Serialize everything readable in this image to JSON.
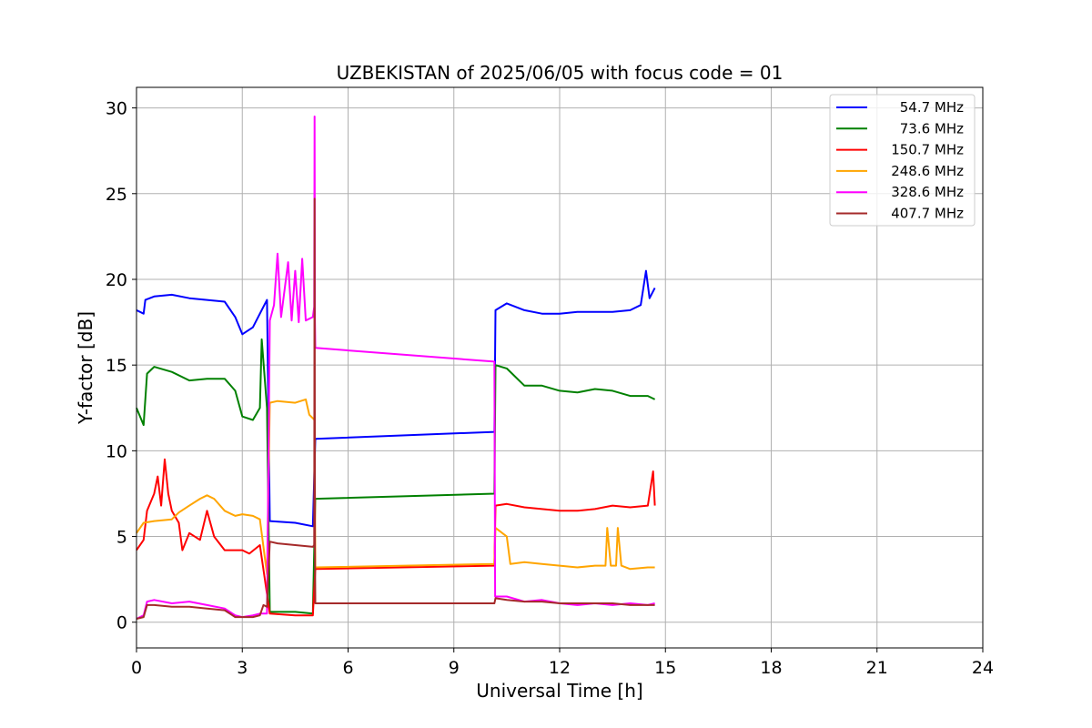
{
  "chart_data": {
    "type": "line",
    "title": "UZBEKISTAN of 2025/06/05 with focus code = 01",
    "xlabel": "Universal Time [h]",
    "ylabel": "Y-factor [dB]",
    "xlim": [
      0,
      24
    ],
    "ylim": [
      -1.5,
      31.2
    ],
    "xticks": [
      0,
      3,
      6,
      9,
      12,
      15,
      18,
      21,
      24
    ],
    "yticks": [
      0,
      5,
      10,
      15,
      20,
      25,
      30
    ],
    "grid": true,
    "legend_position": "top-right",
    "series": [
      {
        "name": " 54.7 MHz",
        "color": "#0000ff",
        "points": [
          [
            0.0,
            18.2
          ],
          [
            0.2,
            18.0
          ],
          [
            0.25,
            18.8
          ],
          [
            0.5,
            19.0
          ],
          [
            1.0,
            19.1
          ],
          [
            1.5,
            18.9
          ],
          [
            2.0,
            18.8
          ],
          [
            2.5,
            18.7
          ],
          [
            2.8,
            17.8
          ],
          [
            3.0,
            16.8
          ],
          [
            3.3,
            17.2
          ],
          [
            3.5,
            18.0
          ],
          [
            3.6,
            18.4
          ],
          [
            3.7,
            18.8
          ],
          [
            3.78,
            5.9
          ],
          [
            4.5,
            5.8
          ],
          [
            5.0,
            5.6
          ],
          [
            5.07,
            10.7
          ],
          [
            10.15,
            11.1
          ],
          [
            10.18,
            18.2
          ],
          [
            10.5,
            18.6
          ],
          [
            11.0,
            18.2
          ],
          [
            11.5,
            18.0
          ],
          [
            12.0,
            18.0
          ],
          [
            12.5,
            18.1
          ],
          [
            13.0,
            18.1
          ],
          [
            13.5,
            18.1
          ],
          [
            14.0,
            18.2
          ],
          [
            14.3,
            18.5
          ],
          [
            14.45,
            20.5
          ],
          [
            14.55,
            18.9
          ],
          [
            14.7,
            19.5
          ]
        ]
      },
      {
        "name": " 73.6 MHz",
        "color": "#008000",
        "points": [
          [
            0.0,
            12.5
          ],
          [
            0.2,
            11.5
          ],
          [
            0.3,
            14.5
          ],
          [
            0.5,
            14.9
          ],
          [
            1.0,
            14.6
          ],
          [
            1.5,
            14.1
          ],
          [
            2.0,
            14.2
          ],
          [
            2.5,
            14.2
          ],
          [
            2.8,
            13.5
          ],
          [
            3.0,
            12.0
          ],
          [
            3.3,
            11.8
          ],
          [
            3.5,
            12.5
          ],
          [
            3.55,
            16.5
          ],
          [
            3.7,
            12.5
          ],
          [
            3.78,
            0.6
          ],
          [
            4.5,
            0.6
          ],
          [
            5.0,
            0.5
          ],
          [
            5.07,
            7.2
          ],
          [
            10.15,
            7.5
          ],
          [
            10.18,
            15.0
          ],
          [
            10.5,
            14.8
          ],
          [
            11.0,
            13.8
          ],
          [
            11.5,
            13.8
          ],
          [
            12.0,
            13.5
          ],
          [
            12.5,
            13.4
          ],
          [
            13.0,
            13.6
          ],
          [
            13.5,
            13.5
          ],
          [
            14.0,
            13.2
          ],
          [
            14.5,
            13.2
          ],
          [
            14.7,
            13.0
          ]
        ]
      },
      {
        "name": "150.7 MHz",
        "color": "#ff0000",
        "points": [
          [
            0.0,
            4.2
          ],
          [
            0.2,
            4.8
          ],
          [
            0.3,
            6.5
          ],
          [
            0.5,
            7.5
          ],
          [
            0.6,
            8.5
          ],
          [
            0.7,
            6.8
          ],
          [
            0.8,
            9.5
          ],
          [
            0.9,
            7.5
          ],
          [
            1.0,
            6.5
          ],
          [
            1.2,
            5.8
          ],
          [
            1.3,
            4.2
          ],
          [
            1.5,
            5.2
          ],
          [
            1.8,
            4.8
          ],
          [
            2.0,
            6.5
          ],
          [
            2.2,
            5.0
          ],
          [
            2.5,
            4.2
          ],
          [
            3.0,
            4.2
          ],
          [
            3.2,
            4.0
          ],
          [
            3.5,
            4.5
          ],
          [
            3.78,
            0.5
          ],
          [
            4.5,
            0.4
          ],
          [
            5.0,
            0.4
          ],
          [
            5.07,
            3.1
          ],
          [
            10.15,
            3.3
          ],
          [
            10.18,
            6.8
          ],
          [
            10.5,
            6.9
          ],
          [
            11.0,
            6.7
          ],
          [
            11.5,
            6.6
          ],
          [
            12.0,
            6.5
          ],
          [
            12.5,
            6.5
          ],
          [
            13.0,
            6.6
          ],
          [
            13.5,
            6.8
          ],
          [
            14.0,
            6.7
          ],
          [
            14.5,
            6.8
          ],
          [
            14.65,
            8.8
          ],
          [
            14.7,
            6.8
          ]
        ]
      },
      {
        "name": "248.6 MHz",
        "color": "#ffa500",
        "points": [
          [
            0.0,
            5.2
          ],
          [
            0.2,
            5.8
          ],
          [
            0.5,
            5.9
          ],
          [
            1.0,
            6.0
          ],
          [
            1.2,
            6.4
          ],
          [
            1.5,
            6.8
          ],
          [
            1.8,
            7.2
          ],
          [
            2.0,
            7.4
          ],
          [
            2.2,
            7.2
          ],
          [
            2.5,
            6.5
          ],
          [
            2.8,
            6.2
          ],
          [
            3.0,
            6.3
          ],
          [
            3.3,
            6.2
          ],
          [
            3.5,
            6.0
          ],
          [
            3.7,
            2.8
          ],
          [
            3.78,
            12.8
          ],
          [
            4.0,
            12.9
          ],
          [
            4.5,
            12.8
          ],
          [
            4.8,
            13.0
          ],
          [
            4.9,
            12.1
          ],
          [
            5.05,
            11.8
          ],
          [
            5.07,
            3.2
          ],
          [
            10.15,
            3.4
          ],
          [
            10.18,
            5.5
          ],
          [
            10.5,
            5.0
          ],
          [
            10.6,
            3.4
          ],
          [
            11.0,
            3.5
          ],
          [
            11.5,
            3.4
          ],
          [
            12.0,
            3.3
          ],
          [
            12.5,
            3.2
          ],
          [
            13.0,
            3.3
          ],
          [
            13.3,
            3.3
          ],
          [
            13.35,
            5.5
          ],
          [
            13.45,
            3.3
          ],
          [
            13.6,
            3.3
          ],
          [
            13.65,
            5.5
          ],
          [
            13.75,
            3.3
          ],
          [
            14.0,
            3.1
          ],
          [
            14.5,
            3.2
          ],
          [
            14.7,
            3.2
          ]
        ]
      },
      {
        "name": "328.6 MHz",
        "color": "#ff00ff",
        "points": [
          [
            0.0,
            0.2
          ],
          [
            0.2,
            0.4
          ],
          [
            0.3,
            1.2
          ],
          [
            0.5,
            1.3
          ],
          [
            1.0,
            1.1
          ],
          [
            1.5,
            1.2
          ],
          [
            2.0,
            1.0
          ],
          [
            2.5,
            0.8
          ],
          [
            2.8,
            0.4
          ],
          [
            3.0,
            0.3
          ],
          [
            3.3,
            0.4
          ],
          [
            3.5,
            0.5
          ],
          [
            3.7,
            0.5
          ],
          [
            3.78,
            17.6
          ],
          [
            3.9,
            18.5
          ],
          [
            4.0,
            21.5
          ],
          [
            4.1,
            17.8
          ],
          [
            4.3,
            21.0
          ],
          [
            4.4,
            17.6
          ],
          [
            4.5,
            20.5
          ],
          [
            4.6,
            17.5
          ],
          [
            4.7,
            21.2
          ],
          [
            4.8,
            17.6
          ],
          [
            5.0,
            17.8
          ],
          [
            5.04,
            18.4
          ],
          [
            5.05,
            29.5
          ],
          [
            5.06,
            17.5
          ],
          [
            5.07,
            16.0
          ],
          [
            10.15,
            15.2
          ],
          [
            10.17,
            1.5
          ],
          [
            10.5,
            1.5
          ],
          [
            11.0,
            1.2
          ],
          [
            11.5,
            1.3
          ],
          [
            12.0,
            1.1
          ],
          [
            12.5,
            1.0
          ],
          [
            13.0,
            1.1
          ],
          [
            13.5,
            1.0
          ],
          [
            14.0,
            1.1
          ],
          [
            14.5,
            1.0
          ],
          [
            14.7,
            1.1
          ]
        ]
      },
      {
        "name": "407.7 MHz",
        "color": "#a52a2a",
        "points": [
          [
            0.0,
            0.2
          ],
          [
            0.2,
            0.3
          ],
          [
            0.3,
            1.0
          ],
          [
            0.5,
            1.0
          ],
          [
            1.0,
            0.9
          ],
          [
            1.5,
            0.9
          ],
          [
            2.0,
            0.8
          ],
          [
            2.5,
            0.7
          ],
          [
            2.8,
            0.3
          ],
          [
            3.0,
            0.3
          ],
          [
            3.3,
            0.3
          ],
          [
            3.5,
            0.4
          ],
          [
            3.6,
            1.0
          ],
          [
            3.7,
            0.9
          ],
          [
            3.78,
            4.7
          ],
          [
            4.0,
            4.6
          ],
          [
            4.5,
            4.5
          ],
          [
            5.0,
            4.4
          ],
          [
            5.04,
            4.5
          ],
          [
            5.05,
            24.7
          ],
          [
            5.06,
            4.4
          ],
          [
            5.07,
            1.1
          ],
          [
            10.15,
            1.1
          ],
          [
            10.18,
            1.4
          ],
          [
            10.5,
            1.3
          ],
          [
            11.0,
            1.2
          ],
          [
            11.5,
            1.2
          ],
          [
            12.0,
            1.1
          ],
          [
            12.5,
            1.1
          ],
          [
            13.0,
            1.1
          ],
          [
            13.5,
            1.1
          ],
          [
            14.0,
            1.0
          ],
          [
            14.5,
            1.0
          ],
          [
            14.7,
            1.0
          ]
        ]
      }
    ]
  }
}
